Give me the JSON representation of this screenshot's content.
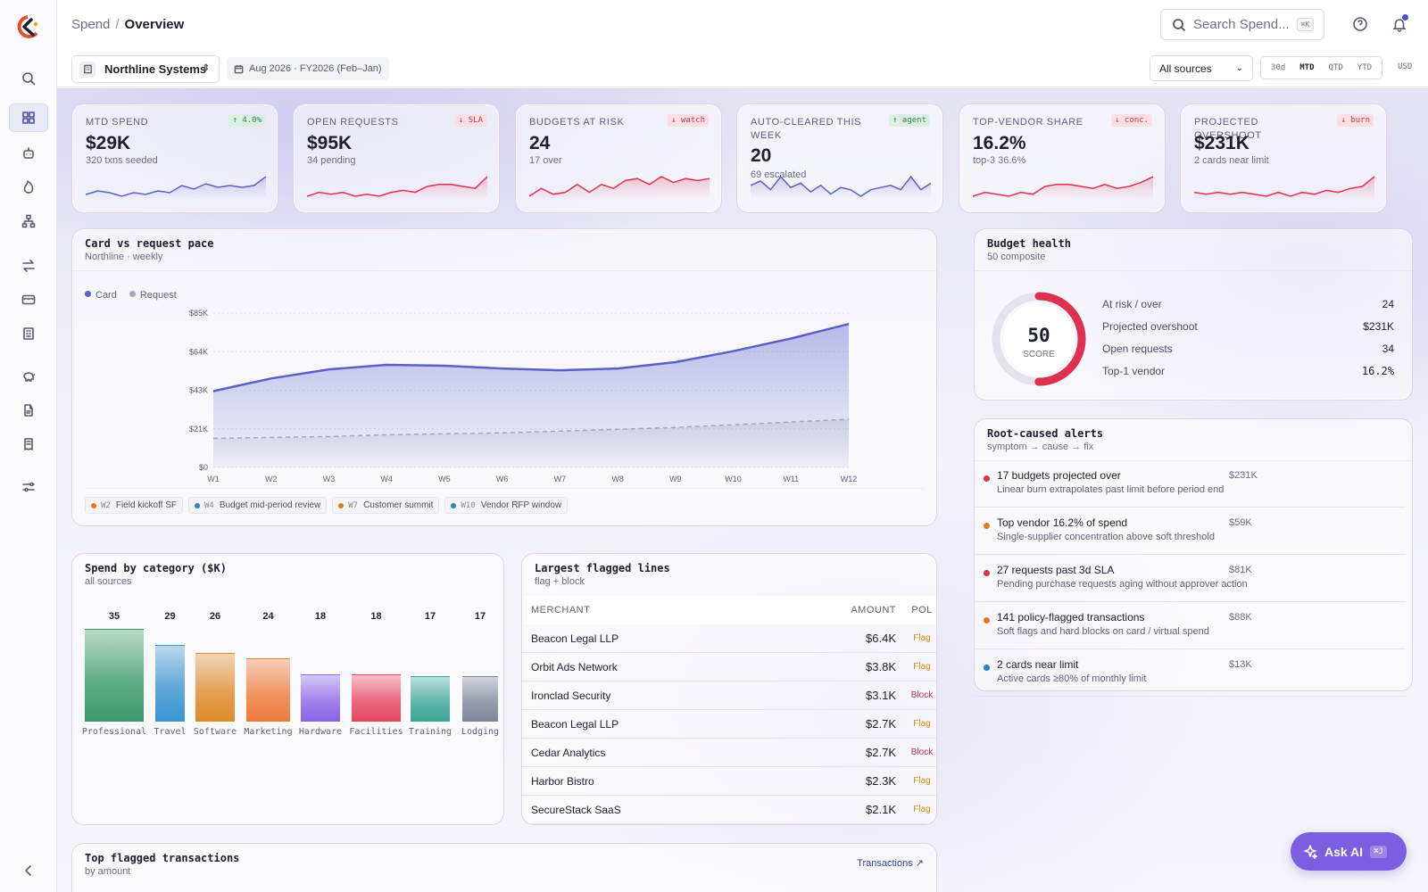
{
  "breadcrumb": {
    "section": "Spend",
    "page": "Overview"
  },
  "search": {
    "placeholder": "Search Spend...",
    "shortcut": "⌘K"
  },
  "filters": {
    "org": "Northline Systems",
    "period": "Aug 2026 · FY2026 (Feb–Jan)",
    "sources": "All sources",
    "ranges": [
      "30d",
      "MTD",
      "QTD",
      "YTD"
    ],
    "active_range": "MTD",
    "currency": "USD"
  },
  "kpis": [
    {
      "label": "MTD spend",
      "value": "$29K",
      "sub": "320 txns seeded",
      "badge": "↑ 4.0%",
      "trend": "up",
      "color": "#5b5fc7",
      "spark": [
        10,
        12,
        11,
        9,
        11,
        10,
        12,
        11,
        15,
        13,
        16,
        14,
        15,
        14,
        15,
        20
      ]
    },
    {
      "label": "Open requests",
      "value": "$95K",
      "sub": "34 pending",
      "badge": "↓ SLA",
      "trend": "down",
      "color": "#e0304f",
      "spark": [
        10,
        12,
        11,
        12,
        10,
        11,
        10,
        12,
        13,
        12,
        15,
        16,
        16,
        15,
        14,
        20
      ]
    },
    {
      "label": "Budgets at risk",
      "value": "24",
      "sub": "17 over",
      "badge": "↓ watch",
      "trend": "down",
      "color": "#e0304f",
      "spark": [
        10,
        14,
        11,
        12,
        16,
        12,
        16,
        14,
        18,
        19,
        16,
        20,
        17,
        19,
        18,
        19
      ]
    },
    {
      "label": "Auto-cleared this week",
      "value": "20",
      "sub": "69 escalated",
      "badge": "↑ agent",
      "trend": "up",
      "color": "#5b5fc7",
      "spark": [
        14,
        16,
        12,
        18,
        13,
        15,
        11,
        14,
        10,
        13,
        12,
        9,
        12,
        13,
        14,
        12,
        18,
        12,
        15
      ]
    },
    {
      "label": "Top-vendor share",
      "value": "16.2%",
      "sub": "top-3 36.6%",
      "badge": "↓ conc.",
      "trend": "down",
      "color": "#e0304f",
      "spark": [
        10,
        12,
        11,
        10,
        12,
        11,
        15,
        16,
        16,
        15,
        14,
        16,
        14,
        15,
        17,
        20
      ]
    },
    {
      "label": "Projected overshoot",
      "value": "$231K",
      "sub": "2 cards near limit",
      "badge": "↓ burn",
      "trend": "down",
      "color": "#e0304f",
      "spark": [
        12,
        11,
        12,
        11,
        12,
        11,
        10,
        12,
        10,
        12,
        11,
        13,
        12,
        14,
        15,
        20
      ]
    }
  ],
  "pace": {
    "title": "Card vs request pace",
    "subtitle": "Northline · weekly",
    "legend": [
      {
        "name": "Card",
        "color": "#5b5fc7"
      },
      {
        "name": "Request",
        "color": "#a3a6b8"
      }
    ]
  },
  "chart_data": {
    "type": "area",
    "x": [
      "W1",
      "W2",
      "W3",
      "W4",
      "W5",
      "W6",
      "W7",
      "W8",
      "W9",
      "W10",
      "W11",
      "W12"
    ],
    "y_ticks": [
      "$0",
      "$21K",
      "$43K",
      "$64K",
      "$85K"
    ],
    "ylim": [
      0,
      85000
    ],
    "series": [
      {
        "name": "Card",
        "values": [
          42000,
          49000,
          54000,
          56500,
          56000,
          54500,
          53500,
          54500,
          58000,
          64000,
          71000,
          79000
        ]
      },
      {
        "name": "Request",
        "values": [
          16000,
          16500,
          17000,
          18000,
          18500,
          19000,
          20000,
          21000,
          22000,
          23500,
          25000,
          26500
        ]
      }
    ]
  },
  "events": [
    {
      "week": "W2",
      "label": "Field kickoff SF",
      "color": "#e07a1c"
    },
    {
      "week": "W4",
      "label": "Budget mid-period review",
      "color": "#2485c9"
    },
    {
      "week": "W7",
      "label": "Customer summit",
      "color": "#e07a1c"
    },
    {
      "week": "W10",
      "label": "Vendor RFP window",
      "color": "#2485c9"
    }
  ],
  "health": {
    "title": "Budget health",
    "subtitle": "50 composite",
    "score": "50",
    "score_label": "SCORE",
    "score_fraction": 0.5,
    "rows": [
      {
        "label": "At risk / over",
        "value": "24"
      },
      {
        "label": "Projected overshoot",
        "value": "$231K"
      },
      {
        "label": "Open requests",
        "value": "34"
      },
      {
        "label": "Top-1 vendor",
        "value": "16.2%"
      }
    ]
  },
  "alerts": {
    "title": "Root-caused alerts",
    "subtitle": "symptom → cause → fix",
    "items": [
      {
        "title": "17 budgets projected over",
        "desc": "Linear burn extrapolates past limit before period end",
        "amount": "$231K",
        "color": "#e0304f"
      },
      {
        "title": "Top vendor 16.2% of spend",
        "desc": "Single-supplier concentration above soft threshold",
        "amount": "$59K",
        "color": "#e07a1c"
      },
      {
        "title": "27 requests past 3d SLA",
        "desc": "Pending purchase requests aging without approver action",
        "amount": "$81K",
        "color": "#e0304f"
      },
      {
        "title": "141 policy-flagged transactions",
        "desc": "Soft flags and hard blocks on card / virtual spend",
        "amount": "$88K",
        "color": "#e07a1c"
      },
      {
        "title": "2 cards near limit",
        "desc": "Active cards ≥80% of monthly limit",
        "amount": "$13K",
        "color": "#2485c9"
      }
    ]
  },
  "category": {
    "title": "Spend by category ($K)",
    "subtitle": "all sources",
    "bars": [
      {
        "name": "Professional",
        "value": 35,
        "color": "#3a9a6a"
      },
      {
        "name": "Travel",
        "value": 29,
        "color": "#3a93d1"
      },
      {
        "name": "Software",
        "value": 26,
        "color": "#e08a2a"
      },
      {
        "name": "Marketing",
        "value": 24,
        "color": "#ee7a3a"
      },
      {
        "name": "Hardware",
        "value": 18,
        "color": "#8b62e6"
      },
      {
        "name": "Facilities",
        "value": 18,
        "color": "#e8455f"
      },
      {
        "name": "Training",
        "value": 17,
        "color": "#3aa596"
      },
      {
        "name": "Lodging",
        "value": 17,
        "color": "#7f869a"
      }
    ]
  },
  "flagged": {
    "title": "Largest flagged lines",
    "subtitle": "flag + block",
    "headers": [
      "Merchant",
      "Amount",
      "Pol"
    ],
    "rows": [
      {
        "merchant": "Beacon Legal LLP",
        "amount": "$6.4K",
        "pol": "Flag"
      },
      {
        "merchant": "Orbit Ads Network",
        "amount": "$3.8K",
        "pol": "Flag"
      },
      {
        "merchant": "Ironclad Security",
        "amount": "$3.1K",
        "pol": "Block"
      },
      {
        "merchant": "Beacon Legal LLP",
        "amount": "$2.7K",
        "pol": "Flag"
      },
      {
        "merchant": "Cedar Analytics",
        "amount": "$2.7K",
        "pol": "Block"
      },
      {
        "merchant": "Harbor Bistro",
        "amount": "$2.3K",
        "pol": "Flag"
      },
      {
        "merchant": "SecureStack SaaS",
        "amount": "$2.1K",
        "pol": "Flag"
      }
    ]
  },
  "top_flagged": {
    "title": "Top flagged transactions",
    "subtitle": "by amount",
    "link": "Transactions ↗"
  },
  "ask_ai": {
    "label": "Ask AI",
    "shortcut": "⌘J"
  }
}
